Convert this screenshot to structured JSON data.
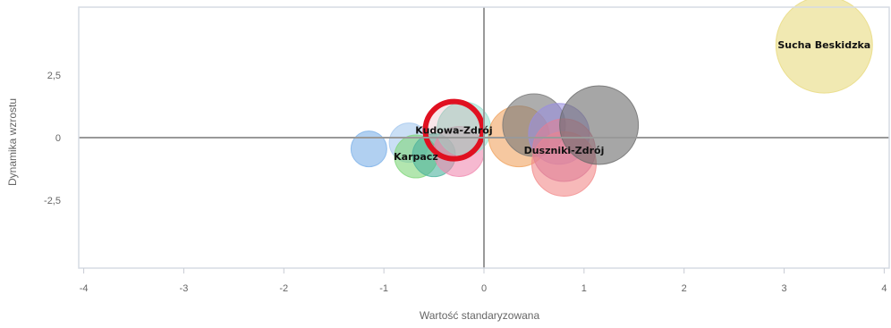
{
  "chart_data": {
    "type": "bubble",
    "xlabel": "Wartość standaryzowana",
    "ylabel": "Dynamika wzrostu",
    "xlim": [
      -4.05,
      4.05
    ],
    "ylim": [
      -5.2,
      5.2
    ],
    "x_ticks": [
      -4,
      -3,
      -2,
      -1,
      0,
      1,
      2,
      3,
      4
    ],
    "y_ticks": [
      2.5,
      0,
      -2.5
    ],
    "x_tick_labels": [
      "-4",
      "-3",
      "-2",
      "-1",
      "0",
      "1",
      "2",
      "3",
      "4"
    ],
    "y_tick_labels": [
      "2,5",
      "0",
      "-2,5"
    ],
    "grid": false,
    "points": [
      {
        "x": -1.15,
        "y": -0.45,
        "r": 20,
        "color": "#7db1e8",
        "label": ""
      },
      {
        "x": -0.75,
        "y": -0.2,
        "r": 22,
        "color": "#a7c9ef",
        "label": ""
      },
      {
        "x": -0.68,
        "y": -0.75,
        "r": 24,
        "color": "#7fd67a",
        "label": "Karpacz"
      },
      {
        "x": -0.5,
        "y": -0.7,
        "r": 24,
        "color": "#4db39e",
        "label": ""
      },
      {
        "x": -0.25,
        "y": -0.55,
        "r": 28,
        "color": "#f08bb0",
        "label": ""
      },
      {
        "x": -0.2,
        "y": 0.35,
        "r": 30,
        "color": "#99e0cf",
        "label": ""
      },
      {
        "x": -0.3,
        "y": 0.3,
        "r": 32,
        "color": "#d65a6a",
        "stroke": "#e01020",
        "strokeWidth": 6,
        "label": "Kudowa-Zdrój"
      },
      {
        "x": 0.35,
        "y": 0.05,
        "r": 34,
        "color": "#f0a460",
        "label": ""
      },
      {
        "x": 0.5,
        "y": 0.5,
        "r": 35,
        "color": "#777777",
        "label": ""
      },
      {
        "x": 0.75,
        "y": 0.15,
        "r": 34,
        "color": "#9a8fe0",
        "label": ""
      },
      {
        "x": 0.8,
        "y": -1.05,
        "r": 36,
        "color": "#f28b8b",
        "label": ""
      },
      {
        "x": 0.8,
        "y": -0.5,
        "r": 35,
        "color": "#e08098",
        "label": "Duszniki-Zdrój"
      },
      {
        "x": 1.15,
        "y": 0.5,
        "r": 44,
        "color": "#6a6a6a",
        "label": ""
      },
      {
        "x": 3.4,
        "y": 3.7,
        "r": 54,
        "color": "#e8da7e",
        "label": "Sucha Beskidzka"
      }
    ]
  }
}
